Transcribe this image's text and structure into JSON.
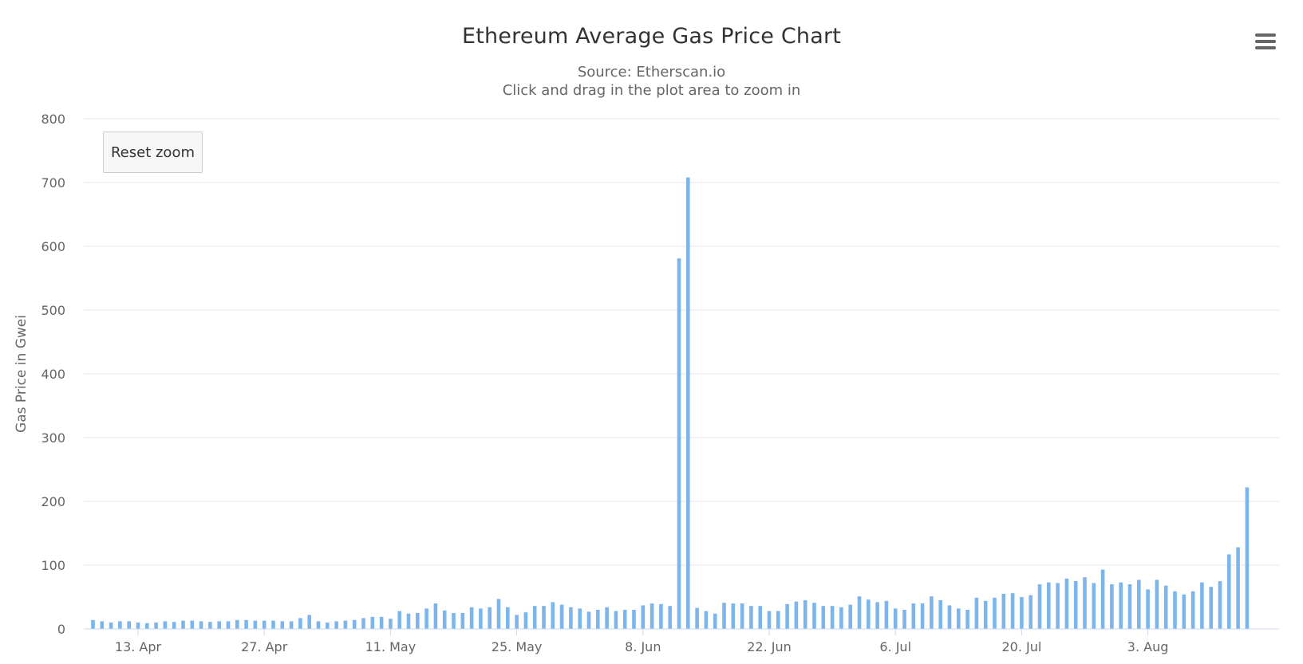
{
  "header": {
    "title": "Ethereum Average Gas Price Chart",
    "subtitle_line1": "Source: Etherscan.io",
    "subtitle_line2": "Click and drag in the plot area to zoom in"
  },
  "controls": {
    "reset_zoom_label": "Reset zoom",
    "menu_icon": "hamburger-menu-icon"
  },
  "colors": {
    "bar": "#7cb5ec",
    "grid": "#e6e6e6",
    "axis": "#ccd6eb",
    "text": "#666666",
    "title": "#333333"
  },
  "chart_data": {
    "type": "bar",
    "title": "Ethereum Average Gas Price Chart",
    "subtitle": "Source: Etherscan.io",
    "xlabel": "",
    "ylabel": "Gas Price in Gwei",
    "ylim": [
      0,
      800
    ],
    "yticks": [
      0,
      100,
      200,
      300,
      400,
      500,
      600,
      700,
      800
    ],
    "grid": true,
    "start_date": "2020-04-08",
    "x_tick_labels": [
      {
        "label": "13. Apr",
        "day_index": 5
      },
      {
        "label": "27. Apr",
        "day_index": 19
      },
      {
        "label": "11. May",
        "day_index": 33
      },
      {
        "label": "25. May",
        "day_index": 47
      },
      {
        "label": "8. Jun",
        "day_index": 61
      },
      {
        "label": "22. Jun",
        "day_index": 75
      },
      {
        "label": "6. Jul",
        "day_index": 89
      },
      {
        "label": "20. Jul",
        "day_index": 103
      },
      {
        "label": "3. Aug",
        "day_index": 117
      }
    ],
    "values": [
      14,
      12,
      10,
      12,
      12,
      10,
      9,
      10,
      12,
      11,
      13,
      13,
      12,
      11,
      12,
      12,
      14,
      14,
      13,
      13,
      13,
      12,
      12,
      17,
      22,
      12,
      10,
      12,
      13,
      14,
      17,
      19,
      19,
      16,
      28,
      24,
      25,
      32,
      40,
      29,
      25,
      25,
      34,
      32,
      34,
      47,
      34,
      22,
      26,
      36,
      36,
      42,
      38,
      34,
      32,
      27,
      30,
      34,
      28,
      30,
      30,
      37,
      40,
      39,
      36,
      581,
      708,
      33,
      28,
      24,
      41,
      40,
      40,
      36,
      36,
      28,
      28,
      39,
      43,
      45,
      41,
      36,
      36,
      34,
      38,
      51,
      46,
      42,
      44,
      32,
      30,
      40,
      40,
      51,
      45,
      37,
      32,
      30,
      49,
      44,
      49,
      55,
      56,
      50,
      53,
      70,
      73,
      72,
      79,
      75,
      81,
      72,
      93,
      70,
      73,
      70,
      77,
      62,
      77,
      68,
      59,
      54,
      59,
      73,
      66,
      75,
      117,
      128,
      222
    ]
  }
}
